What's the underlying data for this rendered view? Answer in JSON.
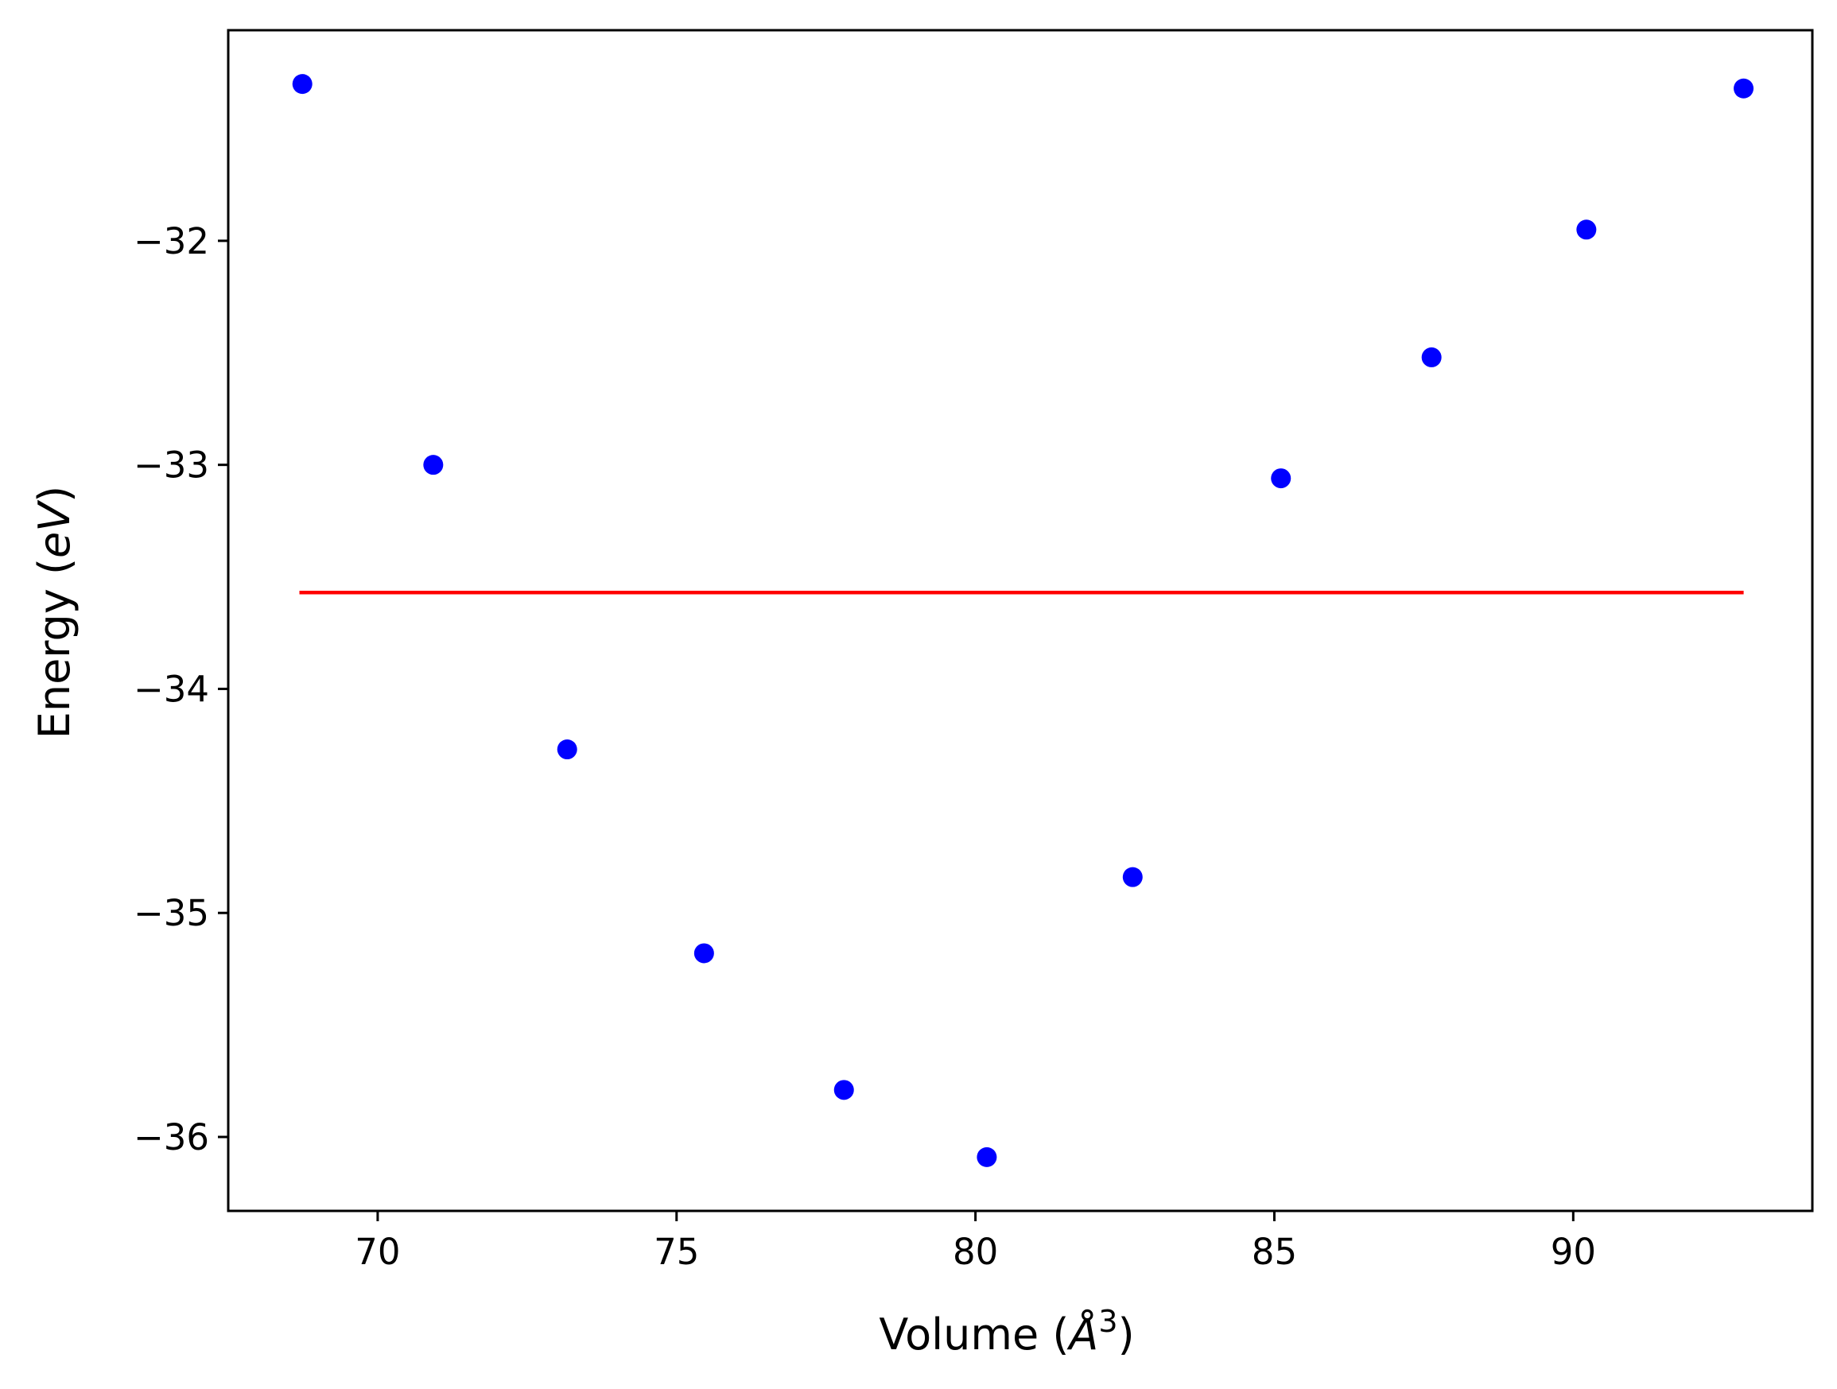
{
  "chart_data": {
    "type": "scatter",
    "xlabel": {
      "prefix": "Volume (",
      "symbol": "Å",
      "superscript": "3",
      "suffix": ")"
    },
    "ylabel": {
      "prefix": "Energy (",
      "unit": "eV",
      "suffix": ")"
    },
    "xlim": [
      67.5,
      94.0
    ],
    "ylim": [
      -36.33,
      -31.06
    ],
    "xticks": [
      {
        "value": 70,
        "label": "70"
      },
      {
        "value": 75,
        "label": "75"
      },
      {
        "value": 80,
        "label": "80"
      },
      {
        "value": 85,
        "label": "85"
      },
      {
        "value": 90,
        "label": "90"
      }
    ],
    "yticks": [
      {
        "value": -32,
        "label": "−32"
      },
      {
        "value": -33,
        "label": "−33"
      },
      {
        "value": -34,
        "label": "−34"
      },
      {
        "value": -35,
        "label": "−35"
      },
      {
        "value": -36,
        "label": "−36"
      }
    ],
    "series": [
      {
        "kind": "points",
        "color": "#0000ff",
        "points": [
          {
            "x": 68.74,
            "y": -31.3
          },
          {
            "x": 70.93,
            "y": -33.0
          },
          {
            "x": 73.17,
            "y": -34.27
          },
          {
            "x": 75.46,
            "y": -35.18
          },
          {
            "x": 77.8,
            "y": -35.79
          },
          {
            "x": 80.19,
            "y": -36.09
          },
          {
            "x": 82.63,
            "y": -34.84
          },
          {
            "x": 85.11,
            "y": -33.06
          },
          {
            "x": 87.63,
            "y": -32.52
          },
          {
            "x": 90.22,
            "y": -31.95
          },
          {
            "x": 92.85,
            "y": -31.32
          }
        ]
      },
      {
        "kind": "line",
        "color": "#ff0000",
        "points": [
          {
            "x": 68.69,
            "y": -33.57
          },
          {
            "x": 92.85,
            "y": -33.57
          }
        ]
      }
    ],
    "grid": false,
    "legend": "none"
  }
}
